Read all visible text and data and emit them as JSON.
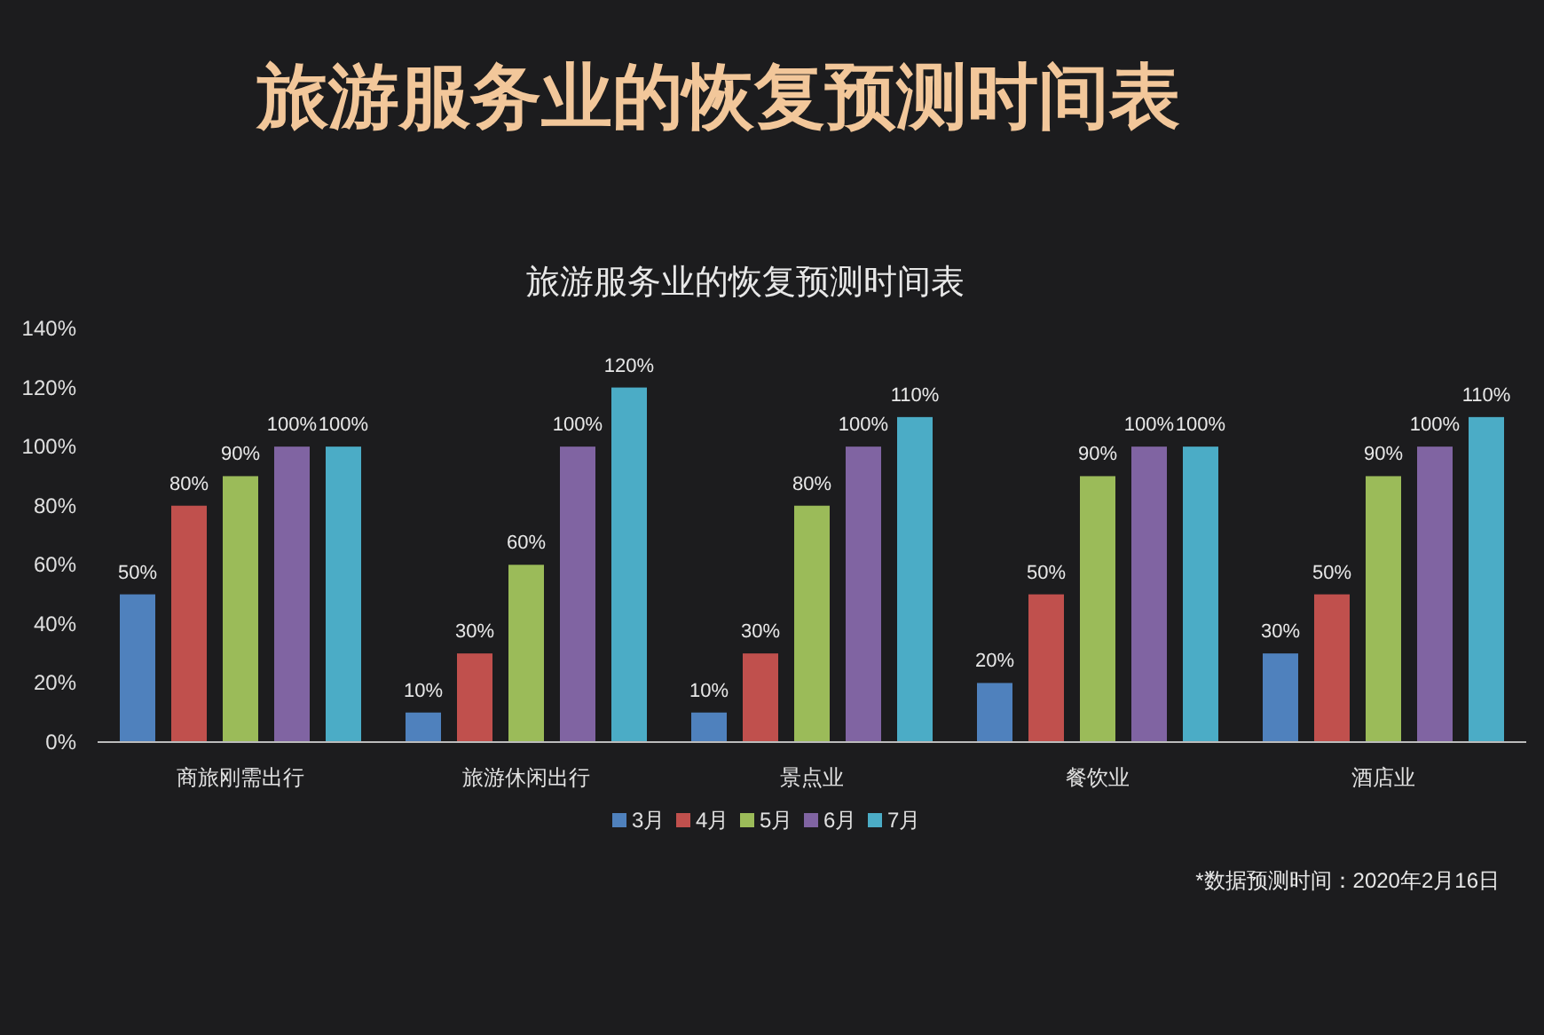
{
  "chart_data": {
    "type": "bar",
    "title": "旅游服务业的恢复预测时间表",
    "subtitle": "旅游服务业的恢复预测时间表",
    "categories": [
      "商旅刚需出行",
      "旅游休闲出行",
      "景点业",
      "餐饮业",
      "酒店业"
    ],
    "series": [
      {
        "name": "3月",
        "color": "#4f81bd",
        "values": [
          50,
          10,
          10,
          20,
          30
        ],
        "value_labels": [
          "50%",
          "10%",
          "10%",
          "20%",
          "30%"
        ]
      },
      {
        "name": "4月",
        "color": "#c0504d",
        "values": [
          80,
          30,
          30,
          50,
          50
        ],
        "value_labels": [
          "80%",
          "30%",
          "30%",
          "50%",
          "50%"
        ]
      },
      {
        "name": "5月",
        "color": "#9bbb59",
        "values": [
          90,
          60,
          80,
          90,
          90
        ],
        "value_labels": [
          "90%",
          "60%",
          "80%",
          "90%",
          "90%"
        ]
      },
      {
        "name": "6月",
        "color": "#8064a2",
        "values": [
          100,
          100,
          100,
          100,
          100
        ],
        "value_labels": [
          "100%",
          "100%",
          "100%",
          "100%",
          "100%"
        ]
      },
      {
        "name": "7月",
        "color": "#4bacc6",
        "values": [
          100,
          120,
          110,
          100,
          110
        ],
        "value_labels": [
          "100%",
          "120%",
          "110%",
          "100%",
          "110%"
        ]
      }
    ],
    "ylim": [
      0,
      140
    ],
    "yticks": [
      {
        "value": 0,
        "label": "0%"
      },
      {
        "value": 20,
        "label": "20%"
      },
      {
        "value": 40,
        "label": "40%"
      },
      {
        "value": 60,
        "label": "60%"
      },
      {
        "value": 80,
        "label": "80%"
      },
      {
        "value": 100,
        "label": "100%"
      },
      {
        "value": 120,
        "label": "120%"
      },
      {
        "value": 140,
        "label": "140%"
      }
    ],
    "grid": false,
    "legend": "bottom",
    "annotations": [
      "*数据预测时间：2020年2月16日"
    ]
  }
}
